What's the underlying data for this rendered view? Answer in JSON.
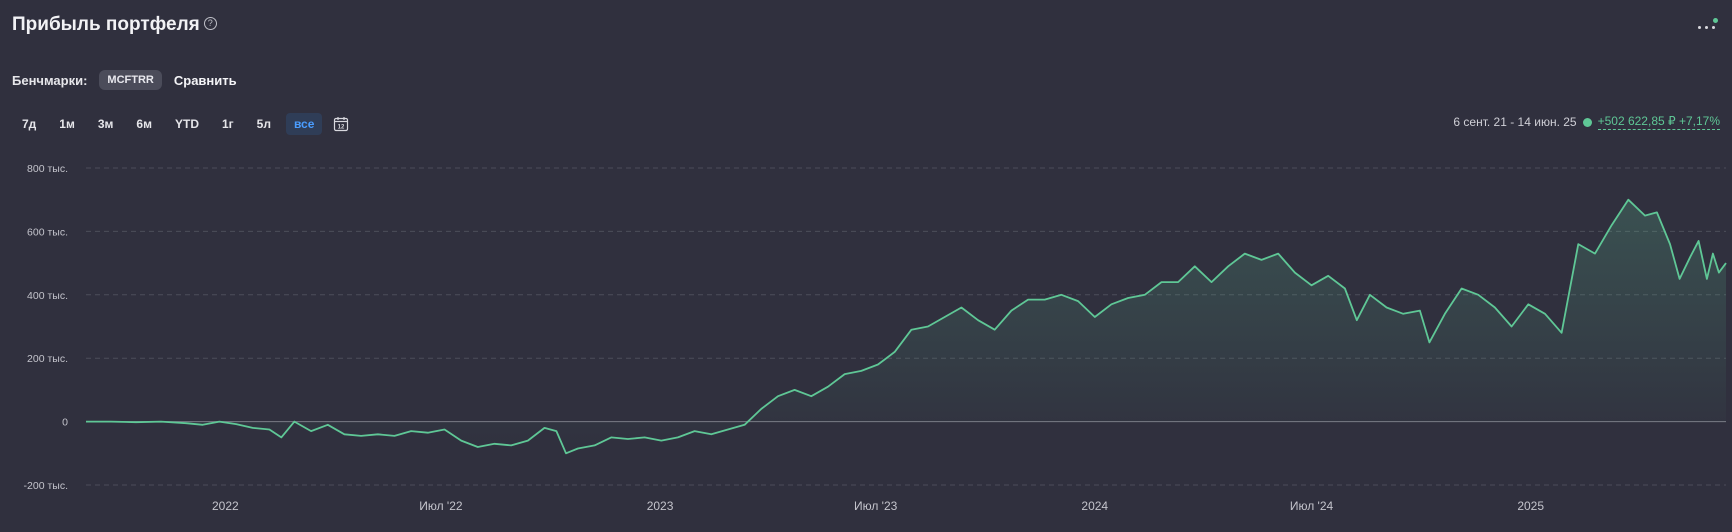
{
  "header": {
    "title": "Прибыль портфеля",
    "help_icon": "?",
    "more_icon": "more-dots-icon"
  },
  "benchmarks": {
    "label": "Бенчмарки:",
    "chip": "MCFTRR",
    "compare": "Сравнить"
  },
  "periods": [
    "7д",
    "1м",
    "3м",
    "6м",
    "YTD",
    "1г",
    "5л",
    "все"
  ],
  "active_period": "все",
  "summary": {
    "range": "6 сент. 21 - 14 июн. 25",
    "gain": "+502 622,85 ₽ +7,17%"
  },
  "colors": {
    "line": "#5fc796",
    "active": "#4a9dff",
    "background": "#30303e"
  },
  "chart_data": {
    "type": "area",
    "ylim": [
      -200000,
      800000
    ],
    "yticks": [
      {
        "value": 800000,
        "label": "800 тыс."
      },
      {
        "value": 600000,
        "label": "600 тыс."
      },
      {
        "value": 400000,
        "label": "400 тыс."
      },
      {
        "value": 200000,
        "label": "200 тыс."
      },
      {
        "value": 0,
        "label": "0"
      },
      {
        "value": -200000,
        "label": "-200 тыс."
      }
    ],
    "xticks": [
      {
        "date": "2022-01-01",
        "label": "2022"
      },
      {
        "date": "2022-07-01",
        "label": "Июл '22"
      },
      {
        "date": "2023-01-01",
        "label": "2023"
      },
      {
        "date": "2023-07-01",
        "label": "Июл '23"
      },
      {
        "date": "2024-01-01",
        "label": "2024"
      },
      {
        "date": "2024-07-01",
        "label": "Июл '24"
      },
      {
        "date": "2025-01-01",
        "label": "2025"
      }
    ],
    "xlim": [
      "2021-09-06",
      "2025-06-14"
    ],
    "grid": true,
    "series": [
      {
        "values": [
          [
            "2021-09-06",
            0
          ],
          [
            "2021-09-27",
            0
          ],
          [
            "2021-10-18",
            -2000
          ],
          [
            "2021-11-08",
            0
          ],
          [
            "2021-11-29",
            -5000
          ],
          [
            "2021-12-13",
            -10000
          ],
          [
            "2021-12-27",
            0
          ],
          [
            "2022-01-10",
            -8000
          ],
          [
            "2022-01-24",
            -20000
          ],
          [
            "2022-02-07",
            -25000
          ],
          [
            "2022-02-17",
            -50000
          ],
          [
            "2022-02-28",
            0
          ],
          [
            "2022-03-14",
            -30000
          ],
          [
            "2022-03-28",
            -10000
          ],
          [
            "2022-04-11",
            -40000
          ],
          [
            "2022-04-25",
            -45000
          ],
          [
            "2022-05-09",
            -40000
          ],
          [
            "2022-05-23",
            -45000
          ],
          [
            "2022-06-06",
            -30000
          ],
          [
            "2022-06-20",
            -35000
          ],
          [
            "2022-07-04",
            -25000
          ],
          [
            "2022-07-18",
            -60000
          ],
          [
            "2022-08-01",
            -80000
          ],
          [
            "2022-08-15",
            -70000
          ],
          [
            "2022-08-29",
            -75000
          ],
          [
            "2022-09-12",
            -60000
          ],
          [
            "2022-09-26",
            -20000
          ],
          [
            "2022-10-06",
            -30000
          ],
          [
            "2022-10-14",
            -100000
          ],
          [
            "2022-10-24",
            -85000
          ],
          [
            "2022-11-07",
            -75000
          ],
          [
            "2022-11-21",
            -50000
          ],
          [
            "2022-12-05",
            -55000
          ],
          [
            "2022-12-19",
            -50000
          ],
          [
            "2023-01-02",
            -60000
          ],
          [
            "2023-01-16",
            -50000
          ],
          [
            "2023-01-30",
            -30000
          ],
          [
            "2023-02-13",
            -40000
          ],
          [
            "2023-02-27",
            -25000
          ],
          [
            "2023-03-13",
            -10000
          ],
          [
            "2023-03-27",
            40000
          ],
          [
            "2023-04-10",
            80000
          ],
          [
            "2023-04-24",
            100000
          ],
          [
            "2023-05-08",
            80000
          ],
          [
            "2023-05-22",
            110000
          ],
          [
            "2023-06-05",
            150000
          ],
          [
            "2023-06-19",
            160000
          ],
          [
            "2023-07-03",
            180000
          ],
          [
            "2023-07-17",
            220000
          ],
          [
            "2023-07-31",
            290000
          ],
          [
            "2023-08-14",
            300000
          ],
          [
            "2023-08-28",
            330000
          ],
          [
            "2023-09-11",
            360000
          ],
          [
            "2023-09-25",
            320000
          ],
          [
            "2023-10-09",
            290000
          ],
          [
            "2023-10-23",
            350000
          ],
          [
            "2023-11-06",
            385000
          ],
          [
            "2023-11-20",
            385000
          ],
          [
            "2023-12-04",
            400000
          ],
          [
            "2023-12-18",
            380000
          ],
          [
            "2024-01-01",
            330000
          ],
          [
            "2024-01-15",
            370000
          ],
          [
            "2024-01-29",
            390000
          ],
          [
            "2024-02-12",
            400000
          ],
          [
            "2024-02-26",
            440000
          ],
          [
            "2024-03-11",
            440000
          ],
          [
            "2024-03-25",
            490000
          ],
          [
            "2024-04-08",
            440000
          ],
          [
            "2024-04-22",
            490000
          ],
          [
            "2024-05-06",
            530000
          ],
          [
            "2024-05-20",
            510000
          ],
          [
            "2024-06-03",
            530000
          ],
          [
            "2024-06-17",
            470000
          ],
          [
            "2024-07-01",
            430000
          ],
          [
            "2024-07-15",
            460000
          ],
          [
            "2024-07-29",
            420000
          ],
          [
            "2024-08-08",
            320000
          ],
          [
            "2024-08-19",
            400000
          ],
          [
            "2024-09-02",
            360000
          ],
          [
            "2024-09-16",
            340000
          ],
          [
            "2024-09-30",
            350000
          ],
          [
            "2024-10-08",
            250000
          ],
          [
            "2024-10-21",
            340000
          ],
          [
            "2024-11-04",
            420000
          ],
          [
            "2024-11-18",
            400000
          ],
          [
            "2024-12-02",
            360000
          ],
          [
            "2024-12-16",
            300000
          ],
          [
            "2024-12-30",
            370000
          ],
          [
            "2025-01-13",
            340000
          ],
          [
            "2025-01-27",
            280000
          ],
          [
            "2025-02-10",
            560000
          ],
          [
            "2025-02-24",
            530000
          ],
          [
            "2025-03-10",
            620000
          ],
          [
            "2025-03-24",
            700000
          ],
          [
            "2025-04-07",
            650000
          ],
          [
            "2025-04-17",
            660000
          ],
          [
            "2025-04-28",
            560000
          ],
          [
            "2025-05-06",
            450000
          ],
          [
            "2025-05-15",
            520000
          ],
          [
            "2025-05-22",
            570000
          ],
          [
            "2025-05-29",
            450000
          ],
          [
            "2025-06-03",
            530000
          ],
          [
            "2025-06-08",
            470000
          ],
          [
            "2025-06-14",
            500000
          ]
        ]
      }
    ]
  }
}
